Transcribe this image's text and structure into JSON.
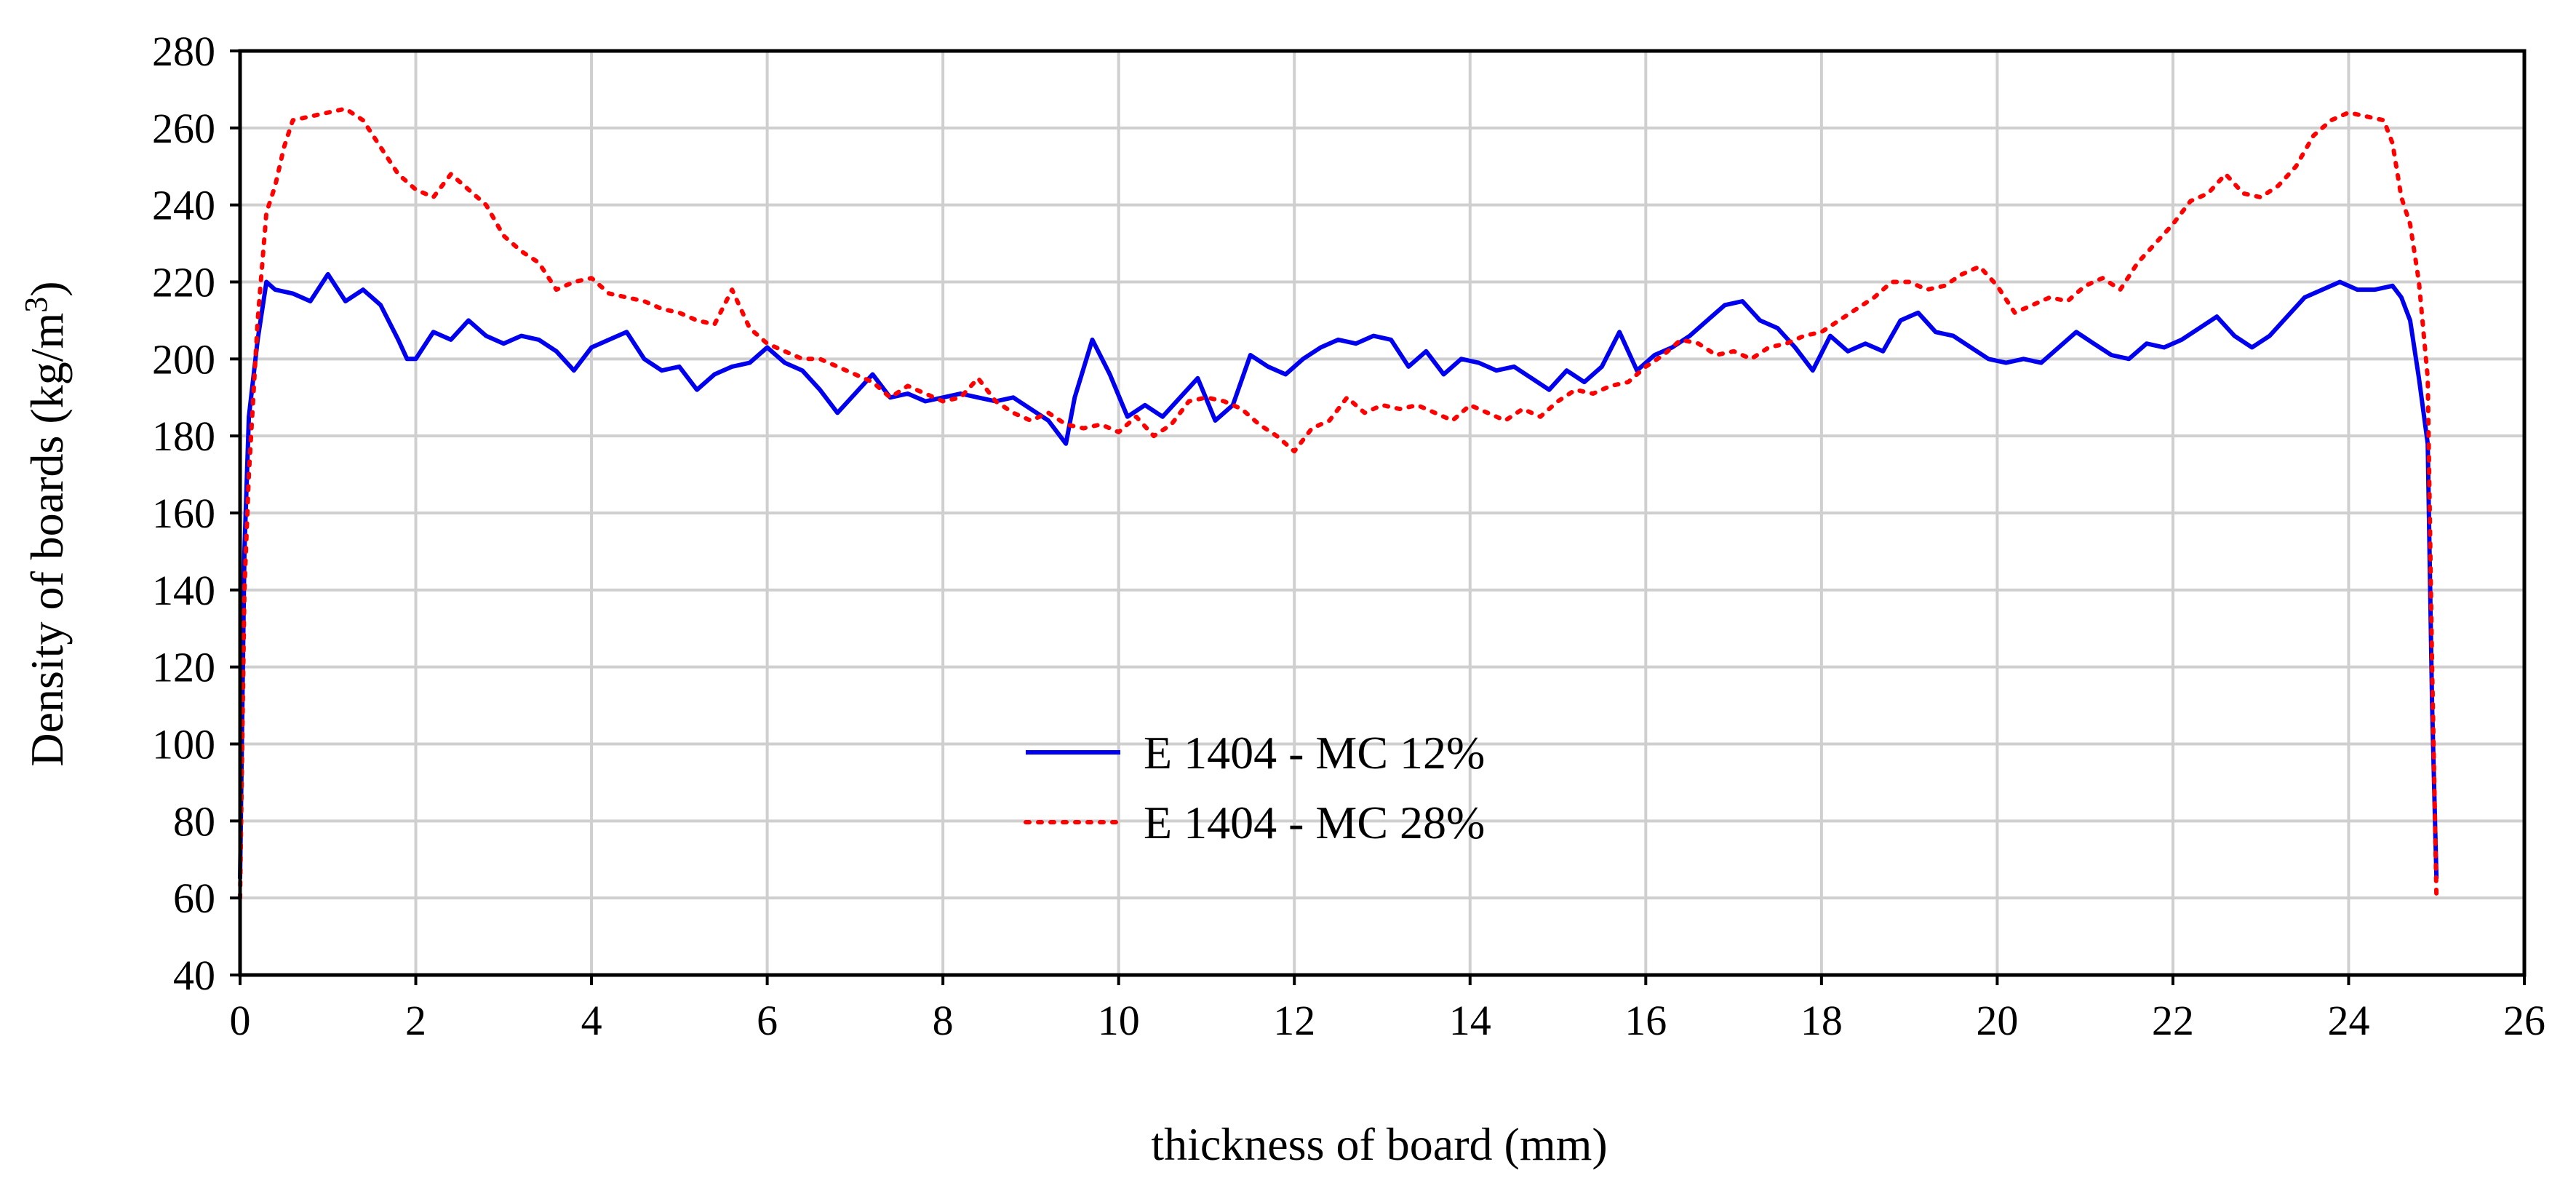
{
  "chart_data": {
    "type": "line",
    "title": "",
    "xlabel": "thickness of board (mm)",
    "ylabel": "Density of boards  (kg/m",
    "ylabel_superscript": "3",
    "ylabel_close": ")",
    "xlim": [
      0,
      26
    ],
    "ylim": [
      40,
      280
    ],
    "xticks": [
      "0",
      "2",
      "4",
      "6",
      "8",
      "10",
      "12",
      "14",
      "16",
      "18",
      "20",
      "22",
      "24",
      "26"
    ],
    "yticks": [
      "40",
      "60",
      "80",
      "100",
      "120",
      "140",
      "160",
      "180",
      "200",
      "220",
      "240",
      "260",
      "280"
    ],
    "grid": true,
    "legend_position": "center-bottom",
    "series": [
      {
        "name": "E 1404 - MC 12%",
        "color": "#0000ee",
        "style": "solid",
        "x": [
          0.0,
          0.05,
          0.1,
          0.2,
          0.3,
          0.4,
          0.6,
          0.8,
          1.0,
          1.2,
          1.4,
          1.6,
          1.8,
          1.9,
          2.0,
          2.2,
          2.4,
          2.6,
          2.8,
          3.0,
          3.2,
          3.4,
          3.6,
          3.8,
          4.0,
          4.2,
          4.4,
          4.6,
          4.8,
          5.0,
          5.2,
          5.4,
          5.6,
          5.8,
          6.0,
          6.2,
          6.4,
          6.6,
          6.8,
          7.0,
          7.2,
          7.4,
          7.6,
          7.8,
          8.0,
          8.2,
          8.4,
          8.6,
          8.8,
          9.0,
          9.2,
          9.4,
          9.5,
          9.7,
          9.9,
          10.1,
          10.3,
          10.5,
          10.7,
          10.9,
          11.1,
          11.3,
          11.5,
          11.7,
          11.9,
          12.1,
          12.3,
          12.5,
          12.7,
          12.9,
          13.1,
          13.3,
          13.5,
          13.7,
          13.9,
          14.1,
          14.3,
          14.5,
          14.7,
          14.9,
          15.1,
          15.3,
          15.5,
          15.7,
          15.9,
          16.1,
          16.3,
          16.5,
          16.7,
          16.9,
          17.1,
          17.3,
          17.5,
          17.7,
          17.9,
          18.1,
          18.3,
          18.5,
          18.7,
          18.9,
          19.1,
          19.3,
          19.5,
          19.7,
          19.9,
          20.1,
          20.3,
          20.5,
          20.7,
          20.9,
          21.1,
          21.3,
          21.5,
          21.7,
          21.9,
          22.1,
          22.3,
          22.5,
          22.7,
          22.9,
          23.1,
          23.3,
          23.5,
          23.7,
          23.9,
          24.1,
          24.3,
          24.5,
          24.6,
          24.7,
          24.8,
          24.9,
          24.95,
          25.0
        ],
        "y": [
          65,
          150,
          185,
          205,
          220,
          218,
          217,
          215,
          222,
          215,
          218,
          214,
          205,
          200,
          200,
          207,
          205,
          210,
          206,
          204,
          206,
          205,
          202,
          197,
          203,
          205,
          207,
          200,
          197,
          198,
          192,
          196,
          198,
          199,
          203,
          199,
          197,
          192,
          186,
          191,
          196,
          190,
          191,
          189,
          190,
          191,
          190,
          189,
          190,
          187,
          184,
          178,
          190,
          205,
          196,
          185,
          188,
          185,
          190,
          195,
          184,
          188,
          201,
          198,
          196,
          200,
          203,
          205,
          204,
          206,
          205,
          198,
          202,
          196,
          200,
          199,
          197,
          198,
          195,
          192,
          197,
          194,
          198,
          207,
          197,
          201,
          203,
          206,
          210,
          214,
          215,
          210,
          208,
          203,
          197,
          206,
          202,
          204,
          202,
          210,
          212,
          207,
          206,
          203,
          200,
          199,
          200,
          199,
          203,
          207,
          204,
          201,
          200,
          204,
          203,
          205,
          208,
          211,
          206,
          203,
          206,
          211,
          216,
          218,
          220,
          218,
          218,
          219,
          216,
          210,
          195,
          178,
          110,
          65
        ]
      },
      {
        "name": "E 1404 - MC 28%",
        "color": "#ff0000",
        "style": "dotted",
        "x": [
          0.0,
          0.05,
          0.1,
          0.2,
          0.3,
          0.4,
          0.5,
          0.6,
          0.8,
          1.0,
          1.2,
          1.4,
          1.6,
          1.8,
          2.0,
          2.2,
          2.4,
          2.6,
          2.8,
          3.0,
          3.2,
          3.4,
          3.6,
          3.8,
          4.0,
          4.2,
          4.4,
          4.6,
          4.8,
          5.0,
          5.2,
          5.4,
          5.6,
          5.8,
          6.0,
          6.2,
          6.4,
          6.6,
          6.8,
          7.0,
          7.2,
          7.4,
          7.6,
          7.8,
          8.0,
          8.2,
          8.4,
          8.6,
          8.8,
          9.0,
          9.2,
          9.4,
          9.6,
          9.8,
          10.0,
          10.2,
          10.4,
          10.6,
          10.8,
          11.0,
          11.2,
          11.4,
          11.6,
          11.8,
          12.0,
          12.2,
          12.4,
          12.6,
          12.8,
          13.0,
          13.2,
          13.4,
          13.6,
          13.8,
          14.0,
          14.2,
          14.4,
          14.6,
          14.8,
          15.0,
          15.2,
          15.4,
          15.6,
          15.8,
          16.0,
          16.2,
          16.4,
          16.6,
          16.8,
          17.0,
          17.2,
          17.4,
          17.6,
          17.8,
          18.0,
          18.2,
          18.4,
          18.6,
          18.8,
          19.0,
          19.2,
          19.4,
          19.6,
          19.8,
          20.0,
          20.2,
          20.4,
          20.6,
          20.8,
          21.0,
          21.2,
          21.4,
          21.6,
          21.8,
          22.0,
          22.2,
          22.4,
          22.6,
          22.8,
          23.0,
          23.2,
          23.4,
          23.6,
          23.8,
          24.0,
          24.2,
          24.4,
          24.5,
          24.6,
          24.7,
          24.8,
          24.9,
          24.95,
          25.0
        ],
        "y": [
          60,
          140,
          170,
          210,
          238,
          245,
          255,
          262,
          263,
          264,
          265,
          262,
          255,
          248,
          244,
          242,
          248,
          244,
          240,
          232,
          228,
          225,
          218,
          220,
          221,
          217,
          216,
          215,
          213,
          212,
          210,
          209,
          218,
          208,
          204,
          202,
          200,
          200,
          198,
          196,
          194,
          190,
          193,
          191,
          189,
          190,
          195,
          189,
          186,
          184,
          186,
          183,
          182,
          183,
          181,
          185,
          180,
          183,
          189,
          190,
          189,
          187,
          183,
          180,
          176,
          182,
          184,
          190,
          186,
          188,
          187,
          188,
          186,
          184,
          188,
          186,
          184,
          187,
          185,
          189,
          192,
          191,
          193,
          194,
          198,
          201,
          205,
          204,
          201,
          202,
          200,
          203,
          204,
          206,
          207,
          210,
          213,
          216,
          220,
          220,
          218,
          219,
          222,
          224,
          219,
          212,
          214,
          216,
          215,
          219,
          221,
          218,
          225,
          230,
          235,
          241,
          243,
          248,
          243,
          242,
          245,
          250,
          258,
          262,
          264,
          263,
          262,
          256,
          242,
          235,
          220,
          195,
          120,
          60
        ]
      }
    ]
  }
}
